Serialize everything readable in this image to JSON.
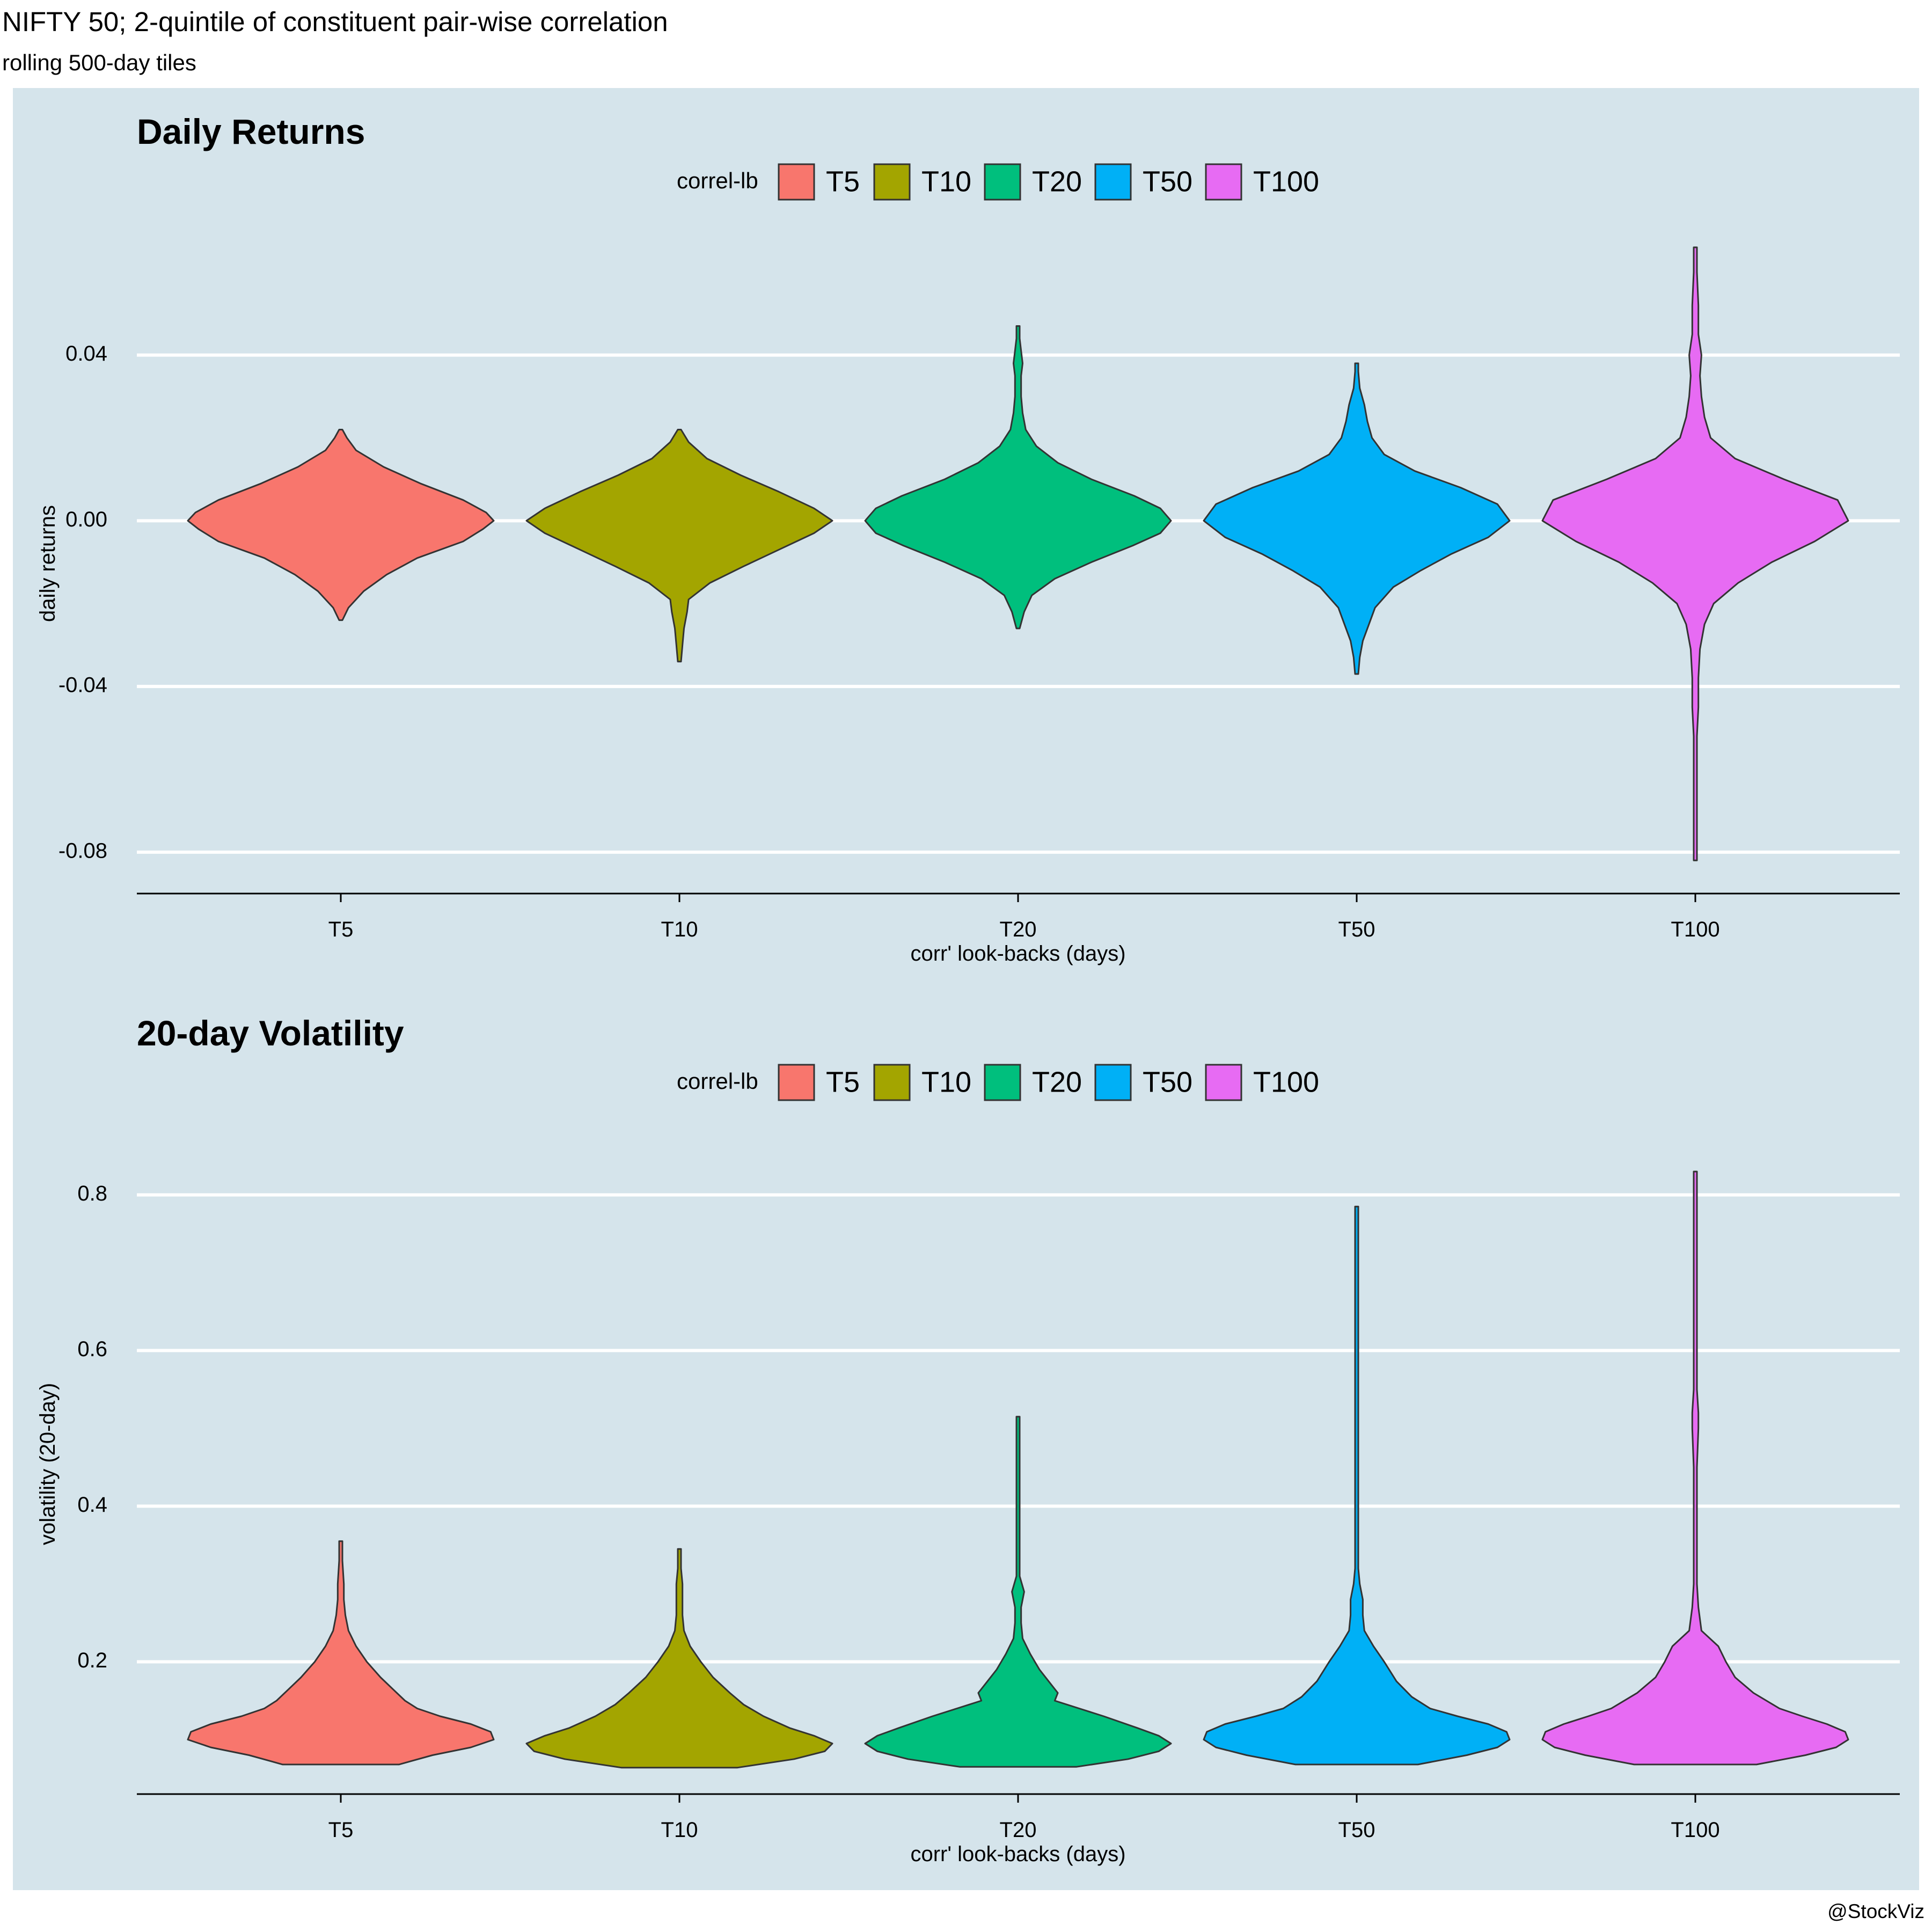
{
  "header": {
    "title": "NIFTY 50; 2-quintile of constituent pair-wise correlation",
    "subtitle": "rolling 500-day tiles"
  },
  "caption": "@StockViz",
  "colors": {
    "panel_background": "#d5e4eb",
    "gridline": "#ffffff",
    "outline": "#333333",
    "series": {
      "T5": "#f8766d",
      "T10": "#a3a500",
      "T20": "#00bf7d",
      "T50": "#00b0f6",
      "T100": "#e76bf3"
    }
  },
  "chart_data": [
    {
      "type": "violin",
      "title": "Daily Returns",
      "xlabel": "corr' look-backs (days)",
      "ylabel": "daily returns",
      "categories": [
        "T5",
        "T10",
        "T20",
        "T50",
        "T100"
      ],
      "yticks": [
        -0.08,
        -0.04,
        0.0,
        0.04
      ],
      "ytick_labels": [
        "-0.08",
        "-0.04",
        "0.00",
        "0.04"
      ],
      "ylim": [
        -0.09,
        0.07
      ],
      "grid": true,
      "legend": {
        "title": "correl-lb",
        "items": [
          "T5",
          "T10",
          "T20",
          "T50",
          "T100"
        ],
        "position": "top-center"
      },
      "series": [
        {
          "category": "T5",
          "profile": [
            [
              -0.024,
              0.01
            ],
            [
              -0.021,
              0.05
            ],
            [
              -0.017,
              0.15
            ],
            [
              -0.013,
              0.3
            ],
            [
              -0.009,
              0.5
            ],
            [
              -0.005,
              0.8
            ],
            [
              -0.002,
              0.93
            ],
            [
              0.0,
              1.0
            ],
            [
              0.002,
              0.95
            ],
            [
              0.005,
              0.8
            ],
            [
              0.009,
              0.52
            ],
            [
              0.013,
              0.28
            ],
            [
              0.017,
              0.1
            ],
            [
              0.02,
              0.04
            ],
            [
              0.022,
              0.01
            ]
          ]
        },
        {
          "category": "T10",
          "profile": [
            [
              -0.034,
              0.01
            ],
            [
              -0.03,
              0.02
            ],
            [
              -0.026,
              0.03
            ],
            [
              -0.022,
              0.05
            ],
            [
              -0.019,
              0.06
            ],
            [
              -0.015,
              0.2
            ],
            [
              -0.011,
              0.42
            ],
            [
              -0.007,
              0.65
            ],
            [
              -0.003,
              0.88
            ],
            [
              0.0,
              1.0
            ],
            [
              0.003,
              0.88
            ],
            [
              0.007,
              0.65
            ],
            [
              0.011,
              0.4
            ],
            [
              0.015,
              0.18
            ],
            [
              0.019,
              0.06
            ],
            [
              0.022,
              0.01
            ]
          ]
        },
        {
          "category": "T20",
          "profile": [
            [
              -0.026,
              0.01
            ],
            [
              -0.022,
              0.04
            ],
            [
              -0.018,
              0.09
            ],
            [
              -0.014,
              0.24
            ],
            [
              -0.01,
              0.48
            ],
            [
              -0.006,
              0.75
            ],
            [
              -0.003,
              0.93
            ],
            [
              0.0,
              1.0
            ],
            [
              0.003,
              0.93
            ],
            [
              0.006,
              0.76
            ],
            [
              0.01,
              0.48
            ],
            [
              0.014,
              0.26
            ],
            [
              0.018,
              0.12
            ],
            [
              0.022,
              0.05
            ],
            [
              0.026,
              0.03
            ],
            [
              0.03,
              0.02
            ],
            [
              0.035,
              0.02
            ],
            [
              0.038,
              0.03
            ],
            [
              0.041,
              0.02
            ],
            [
              0.044,
              0.01
            ],
            [
              0.047,
              0.01
            ]
          ]
        },
        {
          "category": "T50",
          "profile": [
            [
              -0.037,
              0.01
            ],
            [
              -0.033,
              0.02
            ],
            [
              -0.029,
              0.04
            ],
            [
              -0.025,
              0.08
            ],
            [
              -0.021,
              0.12
            ],
            [
              -0.016,
              0.24
            ],
            [
              -0.012,
              0.42
            ],
            [
              -0.008,
              0.62
            ],
            [
              -0.004,
              0.86
            ],
            [
              0.0,
              1.0
            ],
            [
              0.004,
              0.92
            ],
            [
              0.008,
              0.68
            ],
            [
              0.012,
              0.38
            ],
            [
              0.016,
              0.18
            ],
            [
              0.02,
              0.1
            ],
            [
              0.024,
              0.07
            ],
            [
              0.028,
              0.05
            ],
            [
              0.032,
              0.02
            ],
            [
              0.036,
              0.01
            ],
            [
              0.038,
              0.01
            ]
          ]
        },
        {
          "category": "T100",
          "profile": [
            [
              -0.082,
              0.01
            ],
            [
              -0.075,
              0.01
            ],
            [
              -0.068,
              0.01
            ],
            [
              -0.06,
              0.01
            ],
            [
              -0.052,
              0.01
            ],
            [
              -0.045,
              0.02
            ],
            [
              -0.038,
              0.02
            ],
            [
              -0.031,
              0.03
            ],
            [
              -0.025,
              0.06
            ],
            [
              -0.02,
              0.12
            ],
            [
              -0.015,
              0.28
            ],
            [
              -0.01,
              0.5
            ],
            [
              -0.005,
              0.78
            ],
            [
              0.0,
              1.0
            ],
            [
              0.005,
              0.93
            ],
            [
              0.01,
              0.58
            ],
            [
              0.015,
              0.26
            ],
            [
              0.02,
              0.1
            ],
            [
              0.025,
              0.06
            ],
            [
              0.03,
              0.04
            ],
            [
              0.035,
              0.03
            ],
            [
              0.04,
              0.04
            ],
            [
              0.045,
              0.02
            ],
            [
              0.052,
              0.02
            ],
            [
              0.06,
              0.01
            ],
            [
              0.066,
              0.01
            ]
          ]
        }
      ]
    },
    {
      "type": "violin",
      "title": "20-day Volatility",
      "xlabel": "corr' look-backs (days)",
      "ylabel": "volatility (20-day)",
      "categories": [
        "T5",
        "T10",
        "T20",
        "T50",
        "T100"
      ],
      "yticks": [
        0.2,
        0.4,
        0.6,
        0.8
      ],
      "ytick_labels": [
        "0.2",
        "0.4",
        "0.6",
        "0.8"
      ],
      "ylim": [
        0.03,
        0.87
      ],
      "grid": true,
      "legend": {
        "title": "correl-lb",
        "items": [
          "T5",
          "T10",
          "T20",
          "T50",
          "T100"
        ],
        "position": "top-center"
      },
      "series": [
        {
          "category": "T5",
          "profile": [
            [
              0.068,
              0.38
            ],
            [
              0.08,
              0.6
            ],
            [
              0.09,
              0.85
            ],
            [
              0.1,
              1.0
            ],
            [
              0.11,
              0.98
            ],
            [
              0.12,
              0.85
            ],
            [
              0.13,
              0.65
            ],
            [
              0.14,
              0.5
            ],
            [
              0.15,
              0.42
            ],
            [
              0.165,
              0.34
            ],
            [
              0.18,
              0.26
            ],
            [
              0.2,
              0.17
            ],
            [
              0.22,
              0.1
            ],
            [
              0.24,
              0.05
            ],
            [
              0.26,
              0.03
            ],
            [
              0.28,
              0.02
            ],
            [
              0.3,
              0.02
            ],
            [
              0.33,
              0.01
            ],
            [
              0.355,
              0.01
            ]
          ]
        },
        {
          "category": "T10",
          "profile": [
            [
              0.064,
              0.38
            ],
            [
              0.075,
              0.75
            ],
            [
              0.085,
              0.95
            ],
            [
              0.095,
              1.0
            ],
            [
              0.105,
              0.88
            ],
            [
              0.115,
              0.72
            ],
            [
              0.13,
              0.55
            ],
            [
              0.145,
              0.42
            ],
            [
              0.16,
              0.33
            ],
            [
              0.18,
              0.22
            ],
            [
              0.2,
              0.14
            ],
            [
              0.22,
              0.07
            ],
            [
              0.24,
              0.03
            ],
            [
              0.26,
              0.02
            ],
            [
              0.28,
              0.02
            ],
            [
              0.3,
              0.02
            ],
            [
              0.32,
              0.01
            ],
            [
              0.345,
              0.01
            ]
          ]
        },
        {
          "category": "T20",
          "profile": [
            [
              0.065,
              0.38
            ],
            [
              0.075,
              0.72
            ],
            [
              0.085,
              0.92
            ],
            [
              0.095,
              1.0
            ],
            [
              0.105,
              0.92
            ],
            [
              0.115,
              0.78
            ],
            [
              0.13,
              0.56
            ],
            [
              0.14,
              0.4
            ],
            [
              0.15,
              0.24
            ],
            [
              0.16,
              0.26
            ],
            [
              0.175,
              0.2
            ],
            [
              0.19,
              0.14
            ],
            [
              0.21,
              0.08
            ],
            [
              0.23,
              0.03
            ],
            [
              0.25,
              0.02
            ],
            [
              0.27,
              0.02
            ],
            [
              0.29,
              0.04
            ],
            [
              0.31,
              0.01
            ],
            [
              0.4,
              0.005
            ],
            [
              0.515,
              0.005
            ]
          ]
        },
        {
          "category": "T50",
          "profile": [
            [
              0.068,
              0.4
            ],
            [
              0.08,
              0.72
            ],
            [
              0.09,
              0.92
            ],
            [
              0.1,
              1.0
            ],
            [
              0.11,
              0.98
            ],
            [
              0.12,
              0.86
            ],
            [
              0.13,
              0.66
            ],
            [
              0.14,
              0.48
            ],
            [
              0.155,
              0.36
            ],
            [
              0.175,
              0.26
            ],
            [
              0.2,
              0.18
            ],
            [
              0.22,
              0.11
            ],
            [
              0.24,
              0.05
            ],
            [
              0.26,
              0.04
            ],
            [
              0.28,
              0.04
            ],
            [
              0.3,
              0.02
            ],
            [
              0.32,
              0.005
            ],
            [
              0.5,
              0.005
            ],
            [
              0.7,
              0.005
            ],
            [
              0.75,
              0.01
            ],
            [
              0.785,
              0.01
            ]
          ]
        },
        {
          "category": "T100",
          "profile": [
            [
              0.068,
              0.4
            ],
            [
              0.08,
              0.72
            ],
            [
              0.09,
              0.92
            ],
            [
              0.1,
              1.0
            ],
            [
              0.11,
              0.98
            ],
            [
              0.12,
              0.86
            ],
            [
              0.13,
              0.7
            ],
            [
              0.14,
              0.55
            ],
            [
              0.16,
              0.38
            ],
            [
              0.18,
              0.26
            ],
            [
              0.2,
              0.2
            ],
            [
              0.22,
              0.15
            ],
            [
              0.24,
              0.04
            ],
            [
              0.27,
              0.02
            ],
            [
              0.3,
              0.01
            ],
            [
              0.35,
              0.01
            ],
            [
              0.4,
              0.01
            ],
            [
              0.45,
              0.01
            ],
            [
              0.5,
              0.02
            ],
            [
              0.52,
              0.02
            ],
            [
              0.55,
              0.01
            ],
            [
              0.6,
              0.005
            ],
            [
              0.65,
              0.005
            ],
            [
              0.7,
              0.005
            ],
            [
              0.75,
              0.005
            ],
            [
              0.8,
              0.01
            ],
            [
              0.83,
              0.01
            ]
          ]
        }
      ]
    }
  ]
}
